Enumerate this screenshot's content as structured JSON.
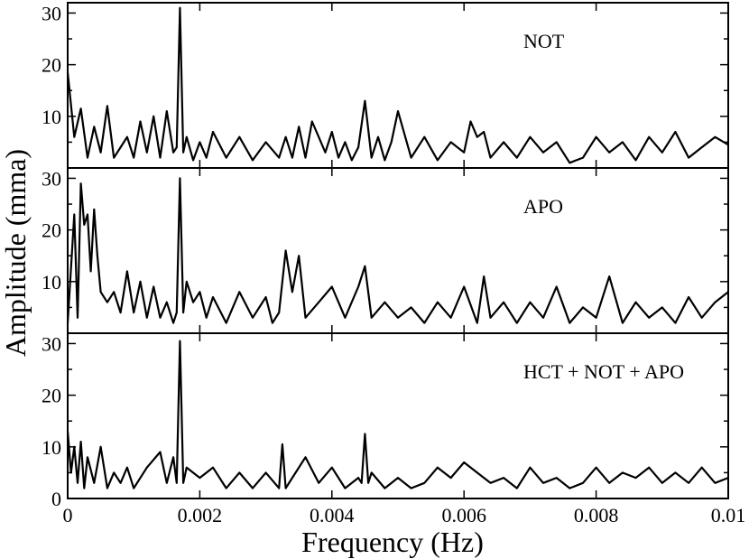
{
  "chart_data": {
    "type": "line",
    "xlabel": "Frequency (Hz)",
    "ylabel": "Amplitude (mma)",
    "xlim": [
      0,
      0.01
    ],
    "ylim": [
      0,
      32
    ],
    "grid": false,
    "x_ticks": [
      "0",
      "0.002",
      "0.004",
      "0.006",
      "0.008",
      "0.01"
    ],
    "x_tick_values": [
      0,
      0.002,
      0.004,
      0.006,
      0.008,
      0.01
    ],
    "y_tick_values": [
      10,
      20,
      30
    ],
    "panels": [
      {
        "label": "NOT",
        "y_ticks": [
          "10",
          "20",
          "30"
        ],
        "x": [
          0,
          0.0001,
          0.0002,
          0.0003,
          0.0004,
          0.0005,
          0.0006,
          0.0007,
          0.0008,
          0.0009,
          0.001,
          0.0011,
          0.0012,
          0.0013,
          0.0014,
          0.0015,
          0.0016,
          0.00165,
          0.0017,
          0.00175,
          0.0018,
          0.0019,
          0.002,
          0.0021,
          0.0022,
          0.0024,
          0.0026,
          0.0028,
          0.003,
          0.0032,
          0.0033,
          0.0034,
          0.0035,
          0.0036,
          0.0037,
          0.0038,
          0.0039,
          0.004,
          0.0041,
          0.0042,
          0.0043,
          0.0044,
          0.0045,
          0.0046,
          0.0047,
          0.0048,
          0.0049,
          0.005,
          0.0052,
          0.0054,
          0.0056,
          0.0058,
          0.006,
          0.0061,
          0.0062,
          0.0063,
          0.0064,
          0.0066,
          0.0068,
          0.007,
          0.0072,
          0.0074,
          0.0076,
          0.0078,
          0.008,
          0.0082,
          0.0084,
          0.0086,
          0.0088,
          0.009,
          0.0092,
          0.0094,
          0.0096,
          0.0098,
          0.01
        ],
        "y": [
          18.5,
          6,
          11.5,
          2,
          8,
          3,
          12,
          2,
          4,
          6,
          2,
          9,
          3,
          10,
          2,
          11,
          3,
          4,
          31,
          3,
          6,
          1.5,
          5,
          2,
          7,
          2,
          6,
          1.5,
          5,
          2,
          6,
          2,
          8,
          2,
          9,
          6,
          3,
          7,
          2,
          5,
          1.5,
          4,
          13,
          2,
          6,
          1.5,
          5,
          11,
          2,
          6,
          1.5,
          5,
          3,
          9,
          6,
          7,
          2,
          5,
          2,
          6,
          3,
          5,
          1,
          2,
          6,
          3,
          5,
          1.5,
          6,
          3,
          7,
          2,
          4,
          6,
          4.5
        ]
      },
      {
        "label": "APO",
        "y_ticks": [
          "10",
          "20",
          "30"
        ],
        "x": [
          0,
          0.0001,
          0.00015,
          0.0002,
          0.00025,
          0.0003,
          0.00035,
          0.0004,
          0.00045,
          0.0005,
          0.0006,
          0.0007,
          0.0008,
          0.0009,
          0.001,
          0.0011,
          0.0012,
          0.0013,
          0.0014,
          0.0015,
          0.0016,
          0.00165,
          0.0017,
          0.00175,
          0.0018,
          0.0019,
          0.002,
          0.0021,
          0.0022,
          0.0024,
          0.0026,
          0.0028,
          0.003,
          0.0031,
          0.0032,
          0.0033,
          0.0034,
          0.0035,
          0.0036,
          0.0038,
          0.004,
          0.0042,
          0.0044,
          0.0045,
          0.0046,
          0.0048,
          0.005,
          0.0052,
          0.0054,
          0.0056,
          0.0058,
          0.006,
          0.0062,
          0.0063,
          0.0064,
          0.0066,
          0.0068,
          0.007,
          0.0072,
          0.0074,
          0.0076,
          0.0078,
          0.008,
          0.0082,
          0.0084,
          0.0086,
          0.0088,
          0.009,
          0.0092,
          0.0094,
          0.0096,
          0.0098,
          0.01
        ],
        "y": [
          2,
          23,
          3,
          29,
          21,
          23,
          12,
          24,
          15,
          8,
          6,
          8,
          4,
          12,
          4,
          10,
          3,
          9,
          3,
          6,
          2,
          4,
          30,
          4,
          10,
          6,
          8,
          3,
          7,
          2,
          8,
          3,
          7,
          2,
          4,
          16,
          8,
          15,
          3,
          6,
          9,
          3,
          9,
          13,
          3,
          6,
          3,
          5,
          2,
          6,
          3,
          9,
          2,
          11,
          3,
          6,
          2,
          6,
          3,
          9,
          2,
          5,
          3,
          11,
          2,
          6,
          3,
          5,
          2,
          7,
          3,
          6,
          8
        ]
      },
      {
        "label": "HCT + NOT + APO",
        "y_ticks": [
          "0",
          "10",
          "20",
          "30"
        ],
        "x": [
          0,
          5e-05,
          0.0001,
          0.00015,
          0.0002,
          0.00025,
          0.0003,
          0.0004,
          0.0005,
          0.0006,
          0.0007,
          0.0008,
          0.0009,
          0.001,
          0.0012,
          0.0014,
          0.0015,
          0.0016,
          0.00165,
          0.0017,
          0.00175,
          0.0018,
          0.002,
          0.0022,
          0.0024,
          0.0026,
          0.0028,
          0.003,
          0.0032,
          0.00325,
          0.0033,
          0.0034,
          0.0036,
          0.0038,
          0.004,
          0.0042,
          0.0044,
          0.00445,
          0.0045,
          0.00455,
          0.0046,
          0.0048,
          0.005,
          0.0052,
          0.0054,
          0.0056,
          0.0058,
          0.006,
          0.0062,
          0.0064,
          0.0066,
          0.0068,
          0.007,
          0.0072,
          0.0074,
          0.0076,
          0.0078,
          0.008,
          0.0082,
          0.0084,
          0.0086,
          0.0088,
          0.009,
          0.0092,
          0.0094,
          0.0096,
          0.0098,
          0.01
        ],
        "y": [
          13,
          5,
          10,
          3,
          11,
          2,
          8,
          3,
          10,
          2,
          5,
          3,
          6,
          2,
          6,
          9,
          3,
          8,
          3,
          30.5,
          3,
          6,
          4,
          6,
          2,
          5,
          2,
          5,
          2,
          10.5,
          2,
          4,
          8,
          3,
          6,
          2,
          4,
          3,
          12.5,
          3,
          5,
          2,
          4,
          2,
          3,
          6,
          4,
          7,
          5,
          3,
          4,
          2,
          6,
          3,
          4,
          2,
          3,
          6,
          3,
          5,
          4,
          6,
          3,
          5,
          3,
          6,
          3,
          4
        ]
      }
    ]
  }
}
